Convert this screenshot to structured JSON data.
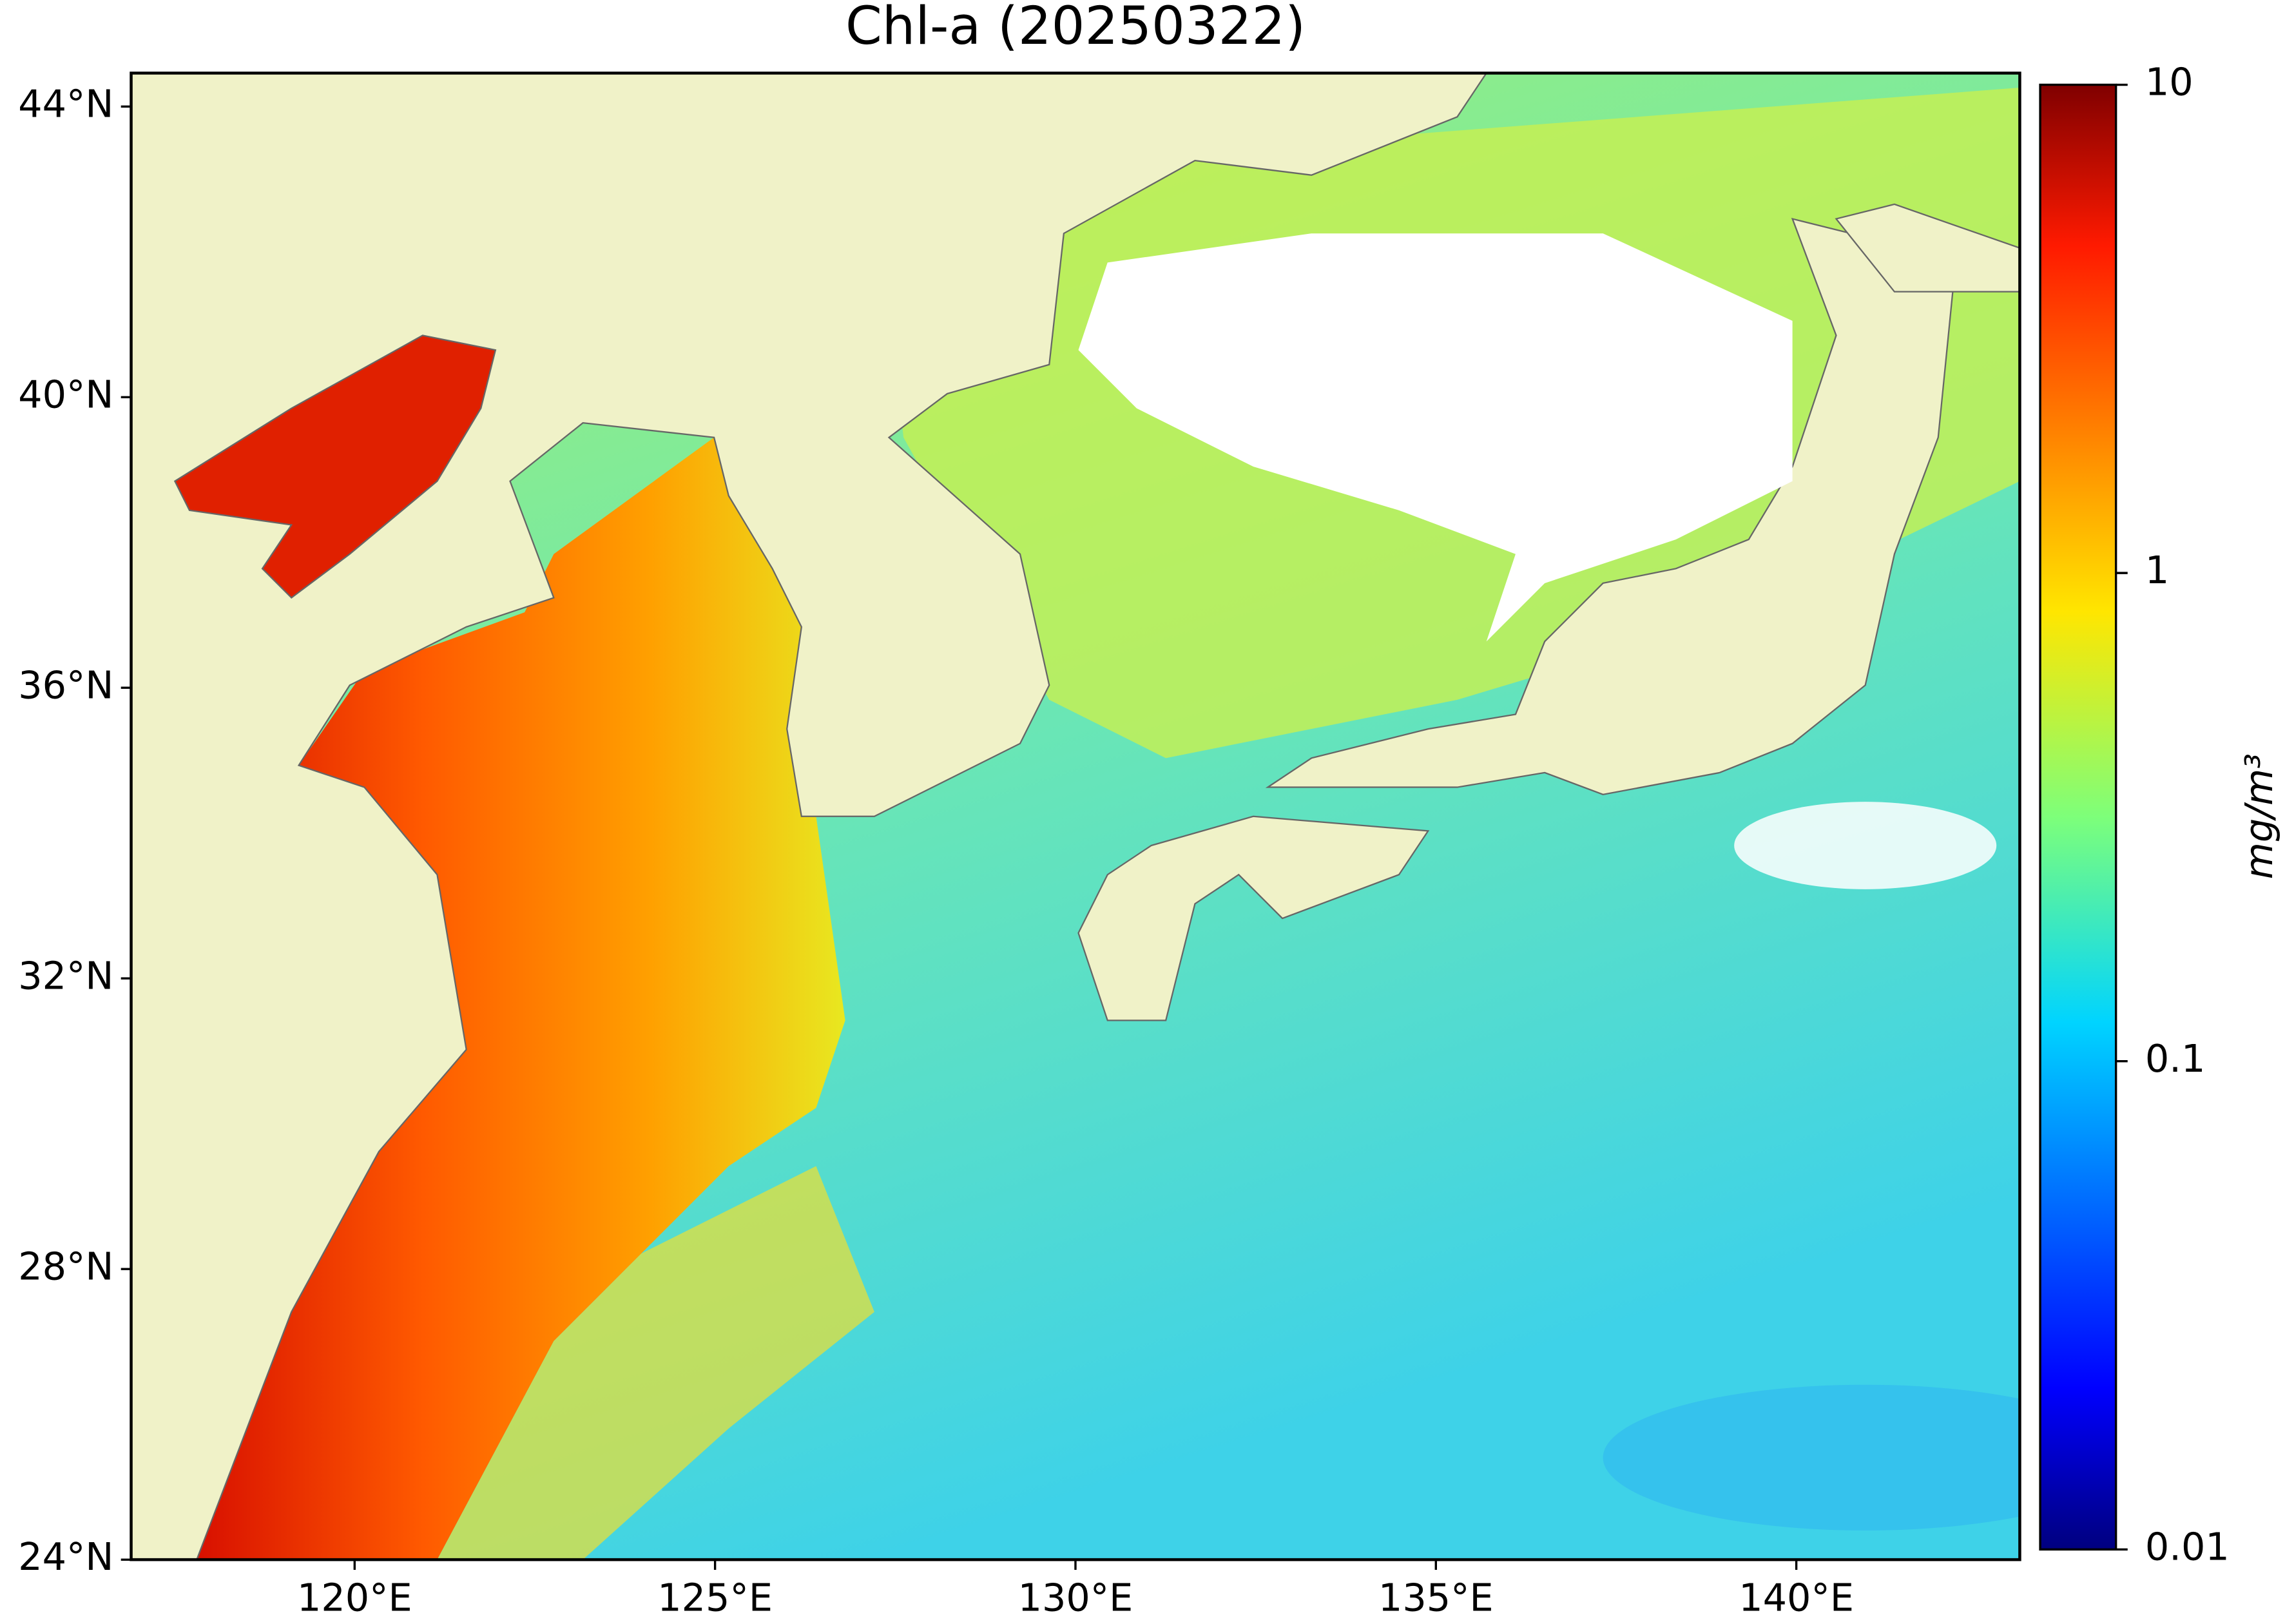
{
  "chart_data": {
    "type": "map",
    "title": "Chl-a (20250322)",
    "xlim": [
      116.9,
      143.1
    ],
    "ylim": [
      24,
      44.46
    ],
    "xticks": [
      {
        "value": 120,
        "label": "120°E"
      },
      {
        "value": 125,
        "label": "125°E"
      },
      {
        "value": 130,
        "label": "130°E"
      },
      {
        "value": 135,
        "label": "135°E"
      },
      {
        "value": 140,
        "label": "140°E"
      }
    ],
    "yticks": [
      {
        "value": 24,
        "label": "24°N"
      },
      {
        "value": 28,
        "label": "28°N"
      },
      {
        "value": 32,
        "label": "32°N"
      },
      {
        "value": 36,
        "label": "36°N"
      },
      {
        "value": 40,
        "label": "40°N"
      },
      {
        "value": 44,
        "label": "44°N"
      }
    ],
    "colorbar": {
      "scale": "log",
      "lim": [
        0.01,
        10
      ],
      "ticks": [
        0.01,
        0.1,
        1,
        10
      ],
      "label": "mg/m³"
    }
  }
}
